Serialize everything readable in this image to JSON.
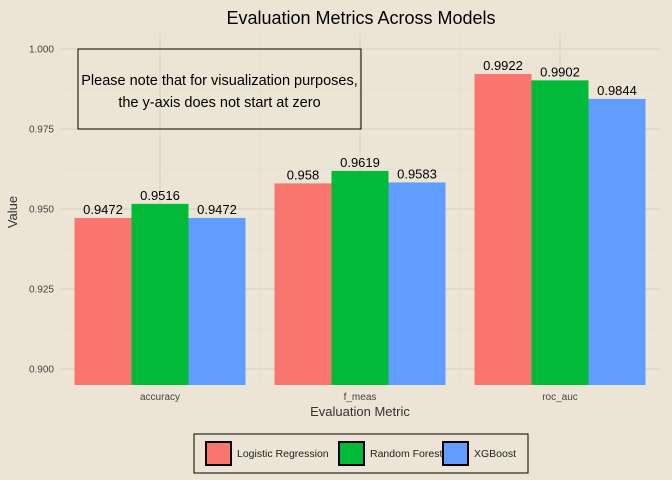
{
  "chart_data": {
    "type": "bar",
    "title": "Evaluation Metrics Across Models",
    "xlabel": "Evaluation Metric",
    "ylabel": "Value",
    "categories": [
      "accuracy",
      "f_meas",
      "roc_auc"
    ],
    "series": [
      {
        "name": "Logistic Regression",
        "color": "#f8766d",
        "values": [
          0.9472,
          0.958,
          0.9922
        ],
        "labels": [
          "0.9472",
          "0.958",
          "0.9922"
        ]
      },
      {
        "name": "Random Forest",
        "color": "#00ba38",
        "values": [
          0.9516,
          0.9619,
          0.9902
        ],
        "labels": [
          "0.9516",
          "0.9619",
          "0.9902"
        ]
      },
      {
        "name": "XGBoost",
        "color": "#619cff",
        "values": [
          0.9472,
          0.9583,
          0.9844
        ],
        "labels": [
          "0.9472",
          "0.9583",
          "0.9844"
        ]
      }
    ],
    "ylim": [
      0.895,
      1.005
    ],
    "yticks": [
      0.9,
      0.925,
      0.95,
      0.975,
      1.0
    ],
    "ytick_labels": [
      "0.900",
      "0.925",
      "0.950",
      "0.975",
      "1.000"
    ],
    "grid": true,
    "legend_position": "bottom",
    "annotation": {
      "lines": [
        "Please note that for visualization purposes,",
        "the y-axis does not start at zero"
      ]
    }
  }
}
